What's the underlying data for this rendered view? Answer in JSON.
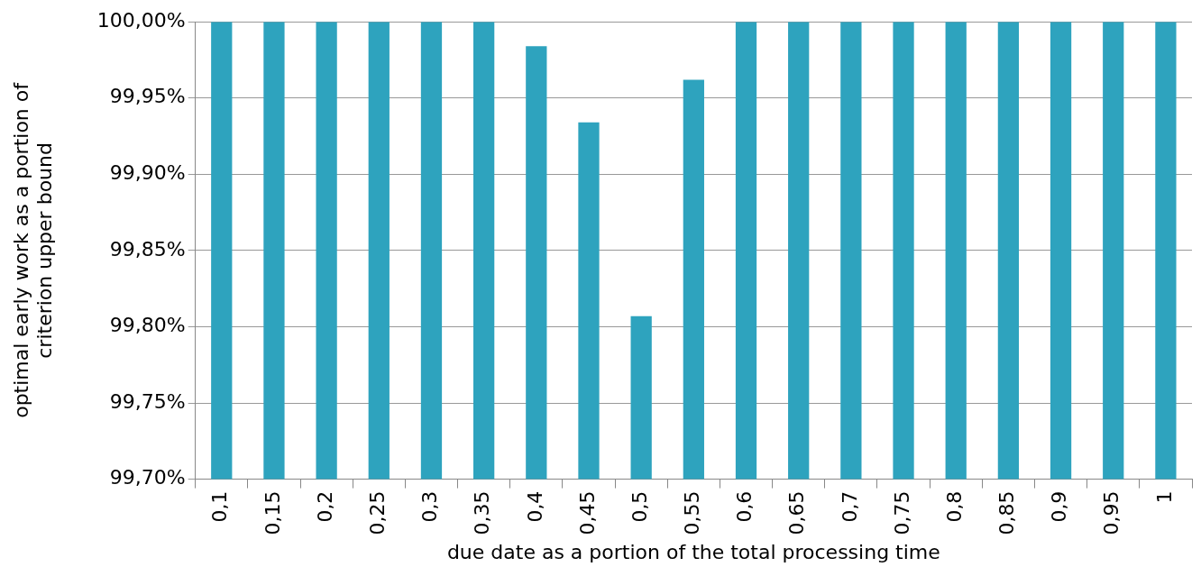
{
  "chart_data": {
    "type": "bar",
    "xlabel": "due date as a portion of the total processing time",
    "ylabel": "optimal early work as a portion of criterion upper bound",
    "categories": [
      "0,1",
      "0,15",
      "0,2",
      "0,25",
      "0,3",
      "0,35",
      "0,4",
      "0,45",
      "0,5",
      "0,55",
      "0,6",
      "0,65",
      "0,7",
      "0,75",
      "0,8",
      "0,85",
      "0,9",
      "0,95",
      "1"
    ],
    "values": [
      100,
      100,
      100,
      100,
      100,
      100,
      99.984,
      99.934,
      99.807,
      99.962,
      100,
      100,
      100,
      100,
      100,
      100,
      100,
      100,
      100
    ],
    "color": "#2ea3be",
    "ylim": [
      99.7,
      100
    ],
    "yticks": [
      {
        "value": 99.7,
        "label": "99,70%"
      },
      {
        "value": 99.75,
        "label": "99,75%"
      },
      {
        "value": 99.8,
        "label": "99,80%"
      },
      {
        "value": 99.85,
        "label": "99,85%"
      },
      {
        "value": 99.9,
        "label": "99,90%"
      },
      {
        "value": 99.95,
        "label": "99,95%"
      },
      {
        "value": 100,
        "label": "100,00%"
      }
    ],
    "grid": "y",
    "legend": false
  }
}
